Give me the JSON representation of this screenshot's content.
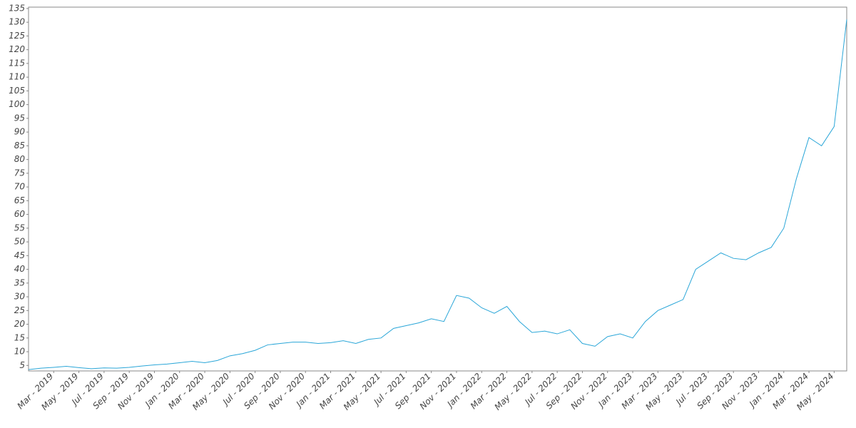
{
  "chart_data": {
    "type": "line",
    "x": [
      "2019-01",
      "2019-02",
      "2019-03",
      "2019-04",
      "2019-05",
      "2019-06",
      "2019-07",
      "2019-08",
      "2019-09",
      "2019-10",
      "2019-11",
      "2019-12",
      "2020-01",
      "2020-02",
      "2020-03",
      "2020-04",
      "2020-05",
      "2020-06",
      "2020-07",
      "2020-08",
      "2020-09",
      "2020-10",
      "2020-11",
      "2020-12",
      "2021-01",
      "2021-02",
      "2021-03",
      "2021-04",
      "2021-05",
      "2021-06",
      "2021-07",
      "2021-08",
      "2021-09",
      "2021-10",
      "2021-11",
      "2021-12",
      "2022-01",
      "2022-02",
      "2022-03",
      "2022-04",
      "2022-05",
      "2022-06",
      "2022-07",
      "2022-08",
      "2022-09",
      "2022-10",
      "2022-11",
      "2022-12",
      "2023-01",
      "2023-02",
      "2023-03",
      "2023-04",
      "2023-05",
      "2023-06",
      "2023-07",
      "2023-08",
      "2023-09",
      "2023-10",
      "2023-11",
      "2023-12",
      "2024-01",
      "2024-02",
      "2024-03",
      "2024-04",
      "2024-05",
      "2024-06"
    ],
    "series": [
      {
        "color": "#2aa6d8",
        "values": [
          3.5,
          4.0,
          4.3,
          4.7,
          4.2,
          3.8,
          4.1,
          4.0,
          4.3,
          4.8,
          5.2,
          5.5,
          6.0,
          6.5,
          6.0,
          6.8,
          8.5,
          9.3,
          10.5,
          12.5,
          13.0,
          13.5,
          13.5,
          13.0,
          13.3,
          14.0,
          13.0,
          14.5,
          15.0,
          18.5,
          19.5,
          20.5,
          22.0,
          21.0,
          30.5,
          29.5,
          26.0,
          24.0,
          26.5,
          21.0,
          17.0,
          17.5,
          16.5,
          18.0,
          13.0,
          12.0,
          15.5,
          16.5,
          15.0,
          21.0,
          25.0,
          27.0,
          29.0,
          40.0,
          43.0,
          46.0,
          44.0,
          43.5,
          46.0,
          48.0,
          55.0,
          73.0,
          88.0,
          85.0,
          92.0,
          131.0
        ]
      }
    ],
    "xlim": [
      "2019-01",
      "2024-06"
    ],
    "xticks": [
      {
        "value": "2019-03",
        "label": "Mar - 2019"
      },
      {
        "value": "2019-05",
        "label": "May - 2019"
      },
      {
        "value": "2019-07",
        "label": "Jul - 2019"
      },
      {
        "value": "2019-09",
        "label": "Sep - 2019"
      },
      {
        "value": "2019-11",
        "label": "Nov - 2019"
      },
      {
        "value": "2020-01",
        "label": "Jan - 2020"
      },
      {
        "value": "2020-03",
        "label": "Mar - 2020"
      },
      {
        "value": "2020-05",
        "label": "May - 2020"
      },
      {
        "value": "2020-07",
        "label": "Jul - 2020"
      },
      {
        "value": "2020-09",
        "label": "Sep - 2020"
      },
      {
        "value": "2020-11",
        "label": "Nov - 2020"
      },
      {
        "value": "2021-01",
        "label": "Jan - 2021"
      },
      {
        "value": "2021-03",
        "label": "Mar - 2021"
      },
      {
        "value": "2021-05",
        "label": "May - 2021"
      },
      {
        "value": "2021-07",
        "label": "Jul - 2021"
      },
      {
        "value": "2021-09",
        "label": "Sep - 2021"
      },
      {
        "value": "2021-11",
        "label": "Nov - 2021"
      },
      {
        "value": "2022-01",
        "label": "Jan - 2022"
      },
      {
        "value": "2022-03",
        "label": "Mar - 2022"
      },
      {
        "value": "2022-05",
        "label": "May - 2022"
      },
      {
        "value": "2022-07",
        "label": "Jul - 2022"
      },
      {
        "value": "2022-09",
        "label": "Sep - 2022"
      },
      {
        "value": "2022-11",
        "label": "Nov - 2022"
      },
      {
        "value": "2023-01",
        "label": "Jan - 2023"
      },
      {
        "value": "2023-03",
        "label": "Mar - 2023"
      },
      {
        "value": "2023-05",
        "label": "May - 2023"
      },
      {
        "value": "2023-07",
        "label": "Jul - 2023"
      },
      {
        "value": "2023-09",
        "label": "Sep - 2023"
      },
      {
        "value": "2023-11",
        "label": "Nov - 2023"
      },
      {
        "value": "2024-01",
        "label": "Jan - 2024"
      },
      {
        "value": "2024-03",
        "label": "Mar - 2024"
      },
      {
        "value": "2024-05",
        "label": "May - 2024"
      }
    ],
    "ylim": [
      3,
      135.5
    ],
    "yticks": [
      5,
      10,
      15,
      20,
      25,
      30,
      35,
      40,
      45,
      50,
      55,
      60,
      65,
      70,
      75,
      80,
      85,
      90,
      95,
      100,
      105,
      110,
      115,
      120,
      125,
      130,
      135
    ]
  }
}
